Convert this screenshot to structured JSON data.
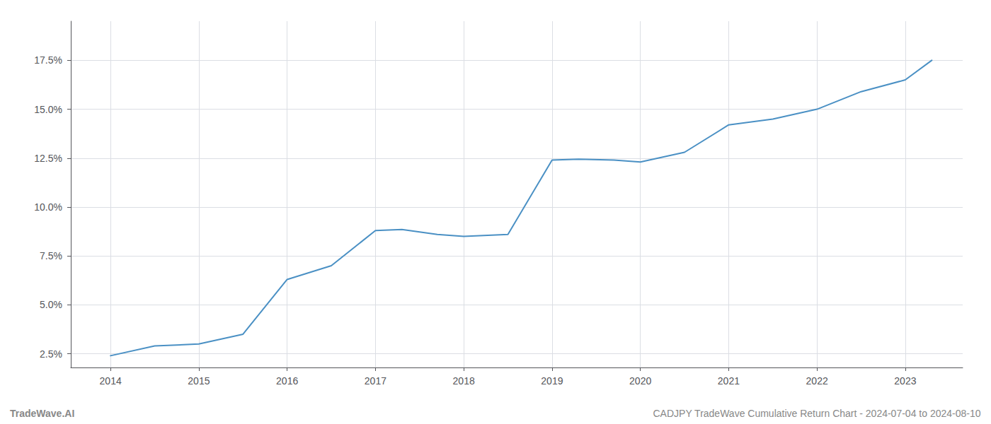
{
  "chart_data": {
    "type": "line",
    "x": [
      2014.0,
      2014.5,
      2015.0,
      2015.5,
      2016.0,
      2016.5,
      2017.0,
      2017.3,
      2017.7,
      2018.0,
      2018.5,
      2019.0,
      2019.3,
      2019.7,
      2020.0,
      2020.5,
      2021.0,
      2021.5,
      2022.0,
      2022.5,
      2023.0,
      2023.3
    ],
    "values": [
      2.4,
      2.9,
      3.0,
      3.5,
      6.3,
      7.0,
      8.8,
      8.85,
      8.6,
      8.5,
      8.6,
      12.4,
      12.45,
      12.4,
      12.3,
      12.8,
      14.2,
      14.5,
      15.0,
      15.9,
      16.5,
      17.5
    ],
    "color": "#4a90c4",
    "xlim": [
      2013.55,
      2023.65
    ],
    "ylim": [
      1.8,
      19.5
    ],
    "xticks": [
      2014,
      2015,
      2016,
      2017,
      2018,
      2019,
      2020,
      2021,
      2022,
      2023
    ],
    "yticks": [
      {
        "value": 2.5,
        "label": "2.5%"
      },
      {
        "value": 5.0,
        "label": "5.0%"
      },
      {
        "value": 7.5,
        "label": "7.5%"
      },
      {
        "value": 10.0,
        "label": "10.0%"
      },
      {
        "value": 12.5,
        "label": "12.5%"
      },
      {
        "value": 15.0,
        "label": "15.0%"
      },
      {
        "value": 17.5,
        "label": "17.5%"
      }
    ],
    "grid": true,
    "annotations": [
      "TradeWave.AI",
      "CADJPY TradeWave Cumulative Return Chart - 2024-07-04 to 2024-08-10"
    ]
  }
}
